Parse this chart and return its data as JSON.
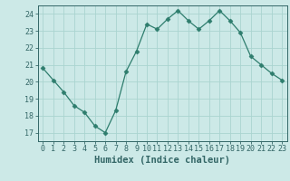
{
  "x": [
    0,
    1,
    2,
    3,
    4,
    5,
    6,
    7,
    8,
    9,
    10,
    11,
    12,
    13,
    14,
    15,
    16,
    17,
    18,
    19,
    20,
    21,
    22,
    23
  ],
  "y": [
    20.8,
    20.1,
    19.4,
    18.6,
    18.2,
    17.4,
    17.0,
    18.3,
    20.6,
    21.8,
    23.4,
    23.1,
    23.7,
    24.2,
    23.6,
    23.1,
    23.6,
    24.2,
    23.6,
    22.9,
    21.5,
    21.0,
    20.5,
    20.1
  ],
  "xlabel": "Humidex (Indice chaleur)",
  "ylim": [
    16.5,
    24.5
  ],
  "xlim": [
    -0.5,
    23.5
  ],
  "yticks": [
    17,
    18,
    19,
    20,
    21,
    22,
    23,
    24
  ],
  "xticks": [
    0,
    1,
    2,
    3,
    4,
    5,
    6,
    7,
    8,
    9,
    10,
    11,
    12,
    13,
    14,
    15,
    16,
    17,
    18,
    19,
    20,
    21,
    22,
    23
  ],
  "line_color": "#2e7d6d",
  "marker": "D",
  "marker_size": 2.5,
  "bg_color": "#cce9e7",
  "grid_color": "#aad4d0",
  "axis_color": "#336666",
  "tick_label_color": "#336666",
  "xlabel_color": "#336666",
  "font_size_ticks": 6,
  "font_size_xlabel": 7.5
}
